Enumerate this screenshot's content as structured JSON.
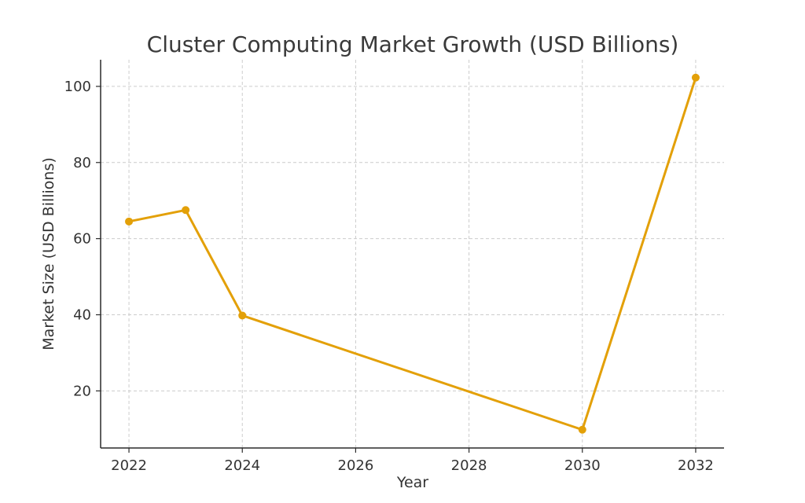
{
  "chart_data": {
    "type": "line",
    "title": "Cluster Computing Market Growth (USD Billions)",
    "xlabel": "Year",
    "ylabel": "Market Size (USD Billions)",
    "x": [
      2022,
      2023,
      2024,
      2030,
      2032
    ],
    "series": [
      {
        "values": [
          64.5,
          67.5,
          39.8,
          9.8,
          102.3
        ],
        "color": "#E3A008"
      }
    ],
    "xlim": [
      2021.5,
      2032.5
    ],
    "ylim": [
      5,
      107
    ],
    "xticks": [
      2022,
      2024,
      2026,
      2028,
      2030,
      2032
    ],
    "yticks": [
      20,
      40,
      60,
      80,
      100
    ],
    "grid": true,
    "legend": "none",
    "marker": "circle",
    "axis_color": "#2a2a2a",
    "grid_color": "#cccccc"
  }
}
